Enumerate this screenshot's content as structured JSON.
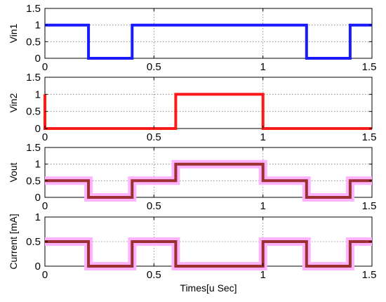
{
  "chart_data": [
    {
      "type": "line",
      "ylabel": "Vin1",
      "xlim": [
        0,
        1.5
      ],
      "ylim": [
        0,
        1.5
      ],
      "xticks": [
        "0",
        "0.5",
        "1",
        "1.5"
      ],
      "yticks": [
        "0",
        "0.5",
        "1",
        "1.5"
      ],
      "grid": true,
      "series": [
        {
          "color": "#1a1aff",
          "x": [
            0,
            0.2,
            0.2,
            0.4,
            0.4,
            1.2,
            1.2,
            1.4,
            1.4,
            1.5
          ],
          "y": [
            1,
            1,
            0,
            0,
            1,
            1,
            0,
            0,
            1,
            1
          ]
        }
      ]
    },
    {
      "type": "line",
      "ylabel": "Vin2",
      "xlim": [
        0,
        1.5
      ],
      "ylim": [
        0,
        1.5
      ],
      "xticks": [
        "0",
        "0.5",
        "1",
        "1.5"
      ],
      "yticks": [
        "0",
        "0.5",
        "1",
        "1.5"
      ],
      "grid": true,
      "series": [
        {
          "color": "#ff1a1a",
          "x": [
            0,
            0,
            0.6,
            0.6,
            1.0,
            1.0,
            1.5
          ],
          "y": [
            1,
            0,
            0,
            1,
            1,
            0,
            0
          ]
        }
      ]
    },
    {
      "type": "line",
      "ylabel": "Vout",
      "xlim": [
        0,
        1.5
      ],
      "ylim": [
        0,
        1.5
      ],
      "xticks": [
        "0",
        "0.5",
        "1",
        "1.5"
      ],
      "yticks": [
        "0",
        "0.5",
        "1",
        "1.5"
      ],
      "grid": true,
      "series": [
        {
          "color": "#ffb3ff",
          "x": [
            0,
            0.2,
            0.2,
            0.4,
            0.4,
            0.6,
            0.6,
            1.0,
            1.0,
            1.2,
            1.2,
            1.4,
            1.4,
            1.5
          ],
          "y": [
            0.5,
            0.5,
            0,
            0,
            0.5,
            0.5,
            1,
            1,
            0.5,
            0.5,
            0,
            0,
            0.5,
            0.5
          ]
        },
        {
          "color": "#9c2f2f",
          "x": [
            0,
            0.2,
            0.2,
            0.4,
            0.4,
            0.6,
            0.6,
            1.0,
            1.0,
            1.2,
            1.2,
            1.4,
            1.4,
            1.5
          ],
          "y": [
            0.5,
            0.5,
            0,
            0,
            0.5,
            0.5,
            1,
            1,
            0.5,
            0.5,
            0,
            0,
            0.5,
            0.5
          ]
        }
      ]
    },
    {
      "type": "line",
      "ylabel": "Current [mA]",
      "xlabel": "Times[u Sec]",
      "xlim": [
        0,
        1.5
      ],
      "ylim": [
        0,
        1
      ],
      "xticks": [
        "0",
        "0.5",
        "1",
        "1.5"
      ],
      "yticks": [
        "0",
        "0.5",
        "1"
      ],
      "grid": true,
      "series": [
        {
          "color": "#ffb3ff",
          "x": [
            0,
            0.2,
            0.2,
            0.4,
            0.4,
            0.6,
            0.6,
            1.0,
            1.0,
            1.2,
            1.2,
            1.4,
            1.4,
            1.5
          ],
          "y": [
            0.5,
            0.5,
            0,
            0,
            0.5,
            0.5,
            0,
            0,
            0.5,
            0.5,
            0,
            0,
            0.5,
            0.5
          ]
        },
        {
          "color": "#9c2f2f",
          "x": [
            0,
            0.2,
            0.2,
            0.4,
            0.4,
            0.6,
            0.6,
            1.0,
            1.0,
            1.2,
            1.2,
            1.4,
            1.4,
            1.5
          ],
          "y": [
            0.5,
            0.5,
            0,
            0,
            0.5,
            0.5,
            0,
            0,
            0.5,
            0.5,
            0,
            0,
            0.5,
            0.5
          ]
        }
      ]
    }
  ]
}
